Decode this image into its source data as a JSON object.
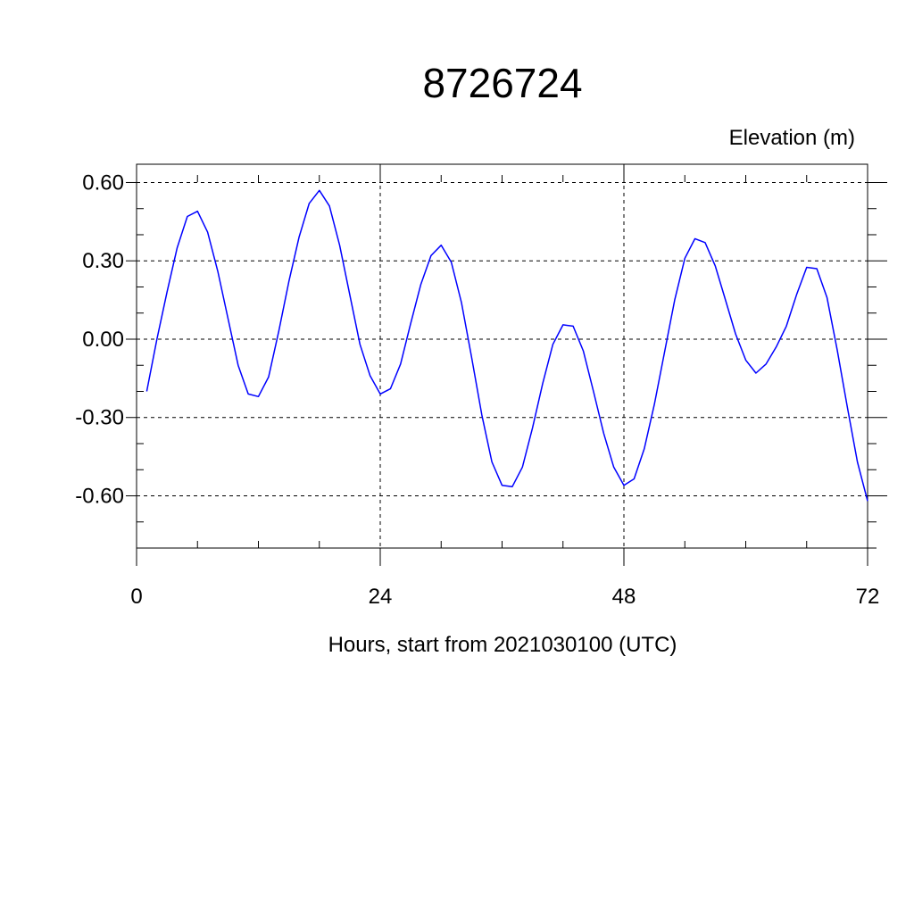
{
  "chart_data": {
    "type": "line",
    "title": "8726724",
    "ylabel": "Elevation (m)",
    "xlabel": "Hours, start from 2021030100 (UTC)",
    "xlim": [
      0,
      72
    ],
    "ylim": [
      -0.8,
      0.67
    ],
    "x_ticks": [
      0,
      24,
      48,
      72
    ],
    "x_tick_labels": [
      "0",
      "24",
      "48",
      "72"
    ],
    "y_ticks": [
      -0.6,
      -0.3,
      0.0,
      0.3,
      0.6
    ],
    "y_tick_labels": [
      "-0.60",
      "-0.30",
      "0.00",
      "0.30",
      "0.60"
    ],
    "grid": true,
    "grid_style": "dashed",
    "line_color": "#0000ff",
    "series": [
      {
        "x": [
          1,
          2,
          3,
          4,
          5,
          6,
          7,
          8,
          9,
          10,
          11,
          12,
          13,
          14,
          15,
          16,
          17,
          18,
          19,
          20,
          21,
          22,
          23,
          24,
          25,
          26,
          27,
          28,
          29,
          30,
          31,
          32,
          33,
          34,
          35,
          36,
          37,
          38,
          39,
          40,
          41,
          42,
          43,
          44,
          45,
          46,
          47,
          48,
          49,
          50,
          51,
          52,
          53,
          54,
          55,
          56,
          57,
          58,
          59,
          60,
          61,
          62,
          63,
          64,
          65,
          66,
          67,
          68,
          69,
          70,
          71,
          72
        ],
        "values": [
          -0.2,
          0.0,
          0.18,
          0.35,
          0.47,
          0.49,
          0.41,
          0.26,
          0.08,
          -0.1,
          -0.21,
          -0.22,
          -0.145,
          0.03,
          0.22,
          0.39,
          0.52,
          0.57,
          0.51,
          0.36,
          0.17,
          -0.02,
          -0.14,
          -0.21,
          -0.19,
          -0.095,
          0.06,
          0.21,
          0.32,
          0.36,
          0.295,
          0.14,
          -0.07,
          -0.29,
          -0.47,
          -0.56,
          -0.565,
          -0.49,
          -0.34,
          -0.17,
          -0.02,
          0.055,
          0.05,
          -0.045,
          -0.2,
          -0.36,
          -0.49,
          -0.56,
          -0.535,
          -0.42,
          -0.25,
          -0.05,
          0.15,
          0.31,
          0.385,
          0.37,
          0.28,
          0.15,
          0.02,
          -0.08,
          -0.13,
          -0.095,
          -0.03,
          0.05,
          0.17,
          0.275,
          0.27,
          0.16,
          -0.04,
          -0.26,
          -0.47,
          -0.62
        ]
      }
    ]
  }
}
